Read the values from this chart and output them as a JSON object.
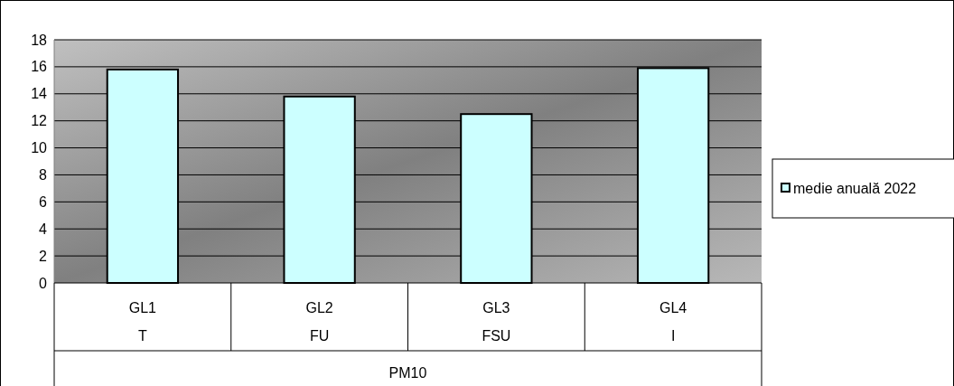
{
  "chart_data": {
    "type": "bar",
    "xlabel": "PM10",
    "categories": [
      "GL1\nT",
      "GL2\nFU",
      "GL3\nFSU",
      "GL4\nI"
    ],
    "series": [
      {
        "name": "medie anuală 2022",
        "color": "#ccffff",
        "values": [
          15.8,
          13.8,
          12.5,
          15.9
        ]
      }
    ],
    "ylim": [
      0,
      18
    ],
    "yticks": [
      0,
      2,
      4,
      6,
      8,
      10,
      12,
      14,
      16,
      18
    ],
    "grid": "y",
    "legend": "right"
  }
}
